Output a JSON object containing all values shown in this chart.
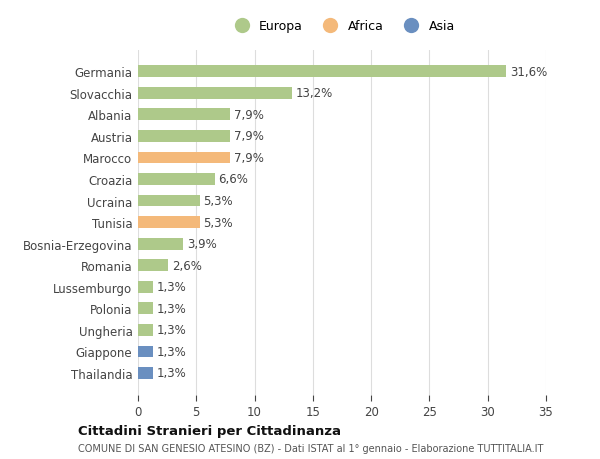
{
  "categories": [
    "Germania",
    "Slovacchia",
    "Albania",
    "Austria",
    "Marocco",
    "Croazia",
    "Ucraina",
    "Tunisia",
    "Bosnia-Erzegovina",
    "Romania",
    "Lussemburgo",
    "Polonia",
    "Ungheria",
    "Giappone",
    "Thailandia"
  ],
  "values": [
    31.6,
    13.2,
    7.9,
    7.9,
    7.9,
    6.6,
    5.3,
    5.3,
    3.9,
    2.6,
    1.3,
    1.3,
    1.3,
    1.3,
    1.3
  ],
  "labels": [
    "31,6%",
    "13,2%",
    "7,9%",
    "7,9%",
    "7,9%",
    "6,6%",
    "5,3%",
    "5,3%",
    "3,9%",
    "2,6%",
    "1,3%",
    "1,3%",
    "1,3%",
    "1,3%",
    "1,3%"
  ],
  "continents": [
    "Europa",
    "Europa",
    "Europa",
    "Europa",
    "Africa",
    "Europa",
    "Europa",
    "Africa",
    "Europa",
    "Europa",
    "Europa",
    "Europa",
    "Europa",
    "Asia",
    "Asia"
  ],
  "colors": {
    "Europa": "#aec98a",
    "Africa": "#f4b97a",
    "Asia": "#6a8fc0"
  },
  "xlim": [
    0,
    35
  ],
  "xticks": [
    0,
    5,
    10,
    15,
    20,
    25,
    30,
    35
  ],
  "title": "Cittadini Stranieri per Cittadinanza",
  "subtitle": "COMUNE DI SAN GENESIO ATESINO (BZ) - Dati ISTAT al 1° gennaio - Elaborazione TUTTITALIA.IT",
  "bg_color": "#ffffff",
  "grid_color": "#dddddd",
  "bar_height": 0.55,
  "label_fontsize": 8.5,
  "ytick_fontsize": 8.5,
  "xtick_fontsize": 8.5
}
